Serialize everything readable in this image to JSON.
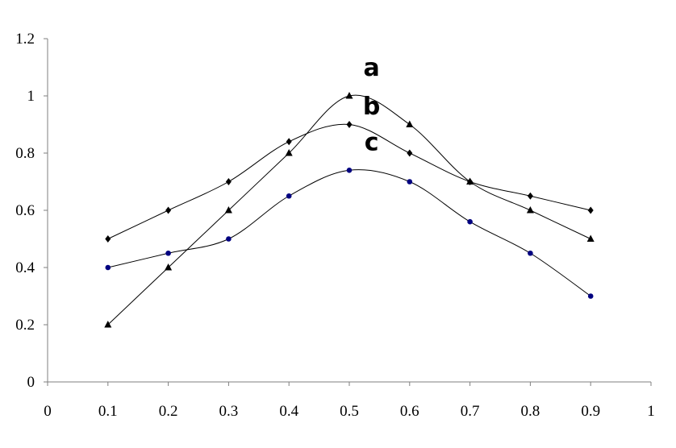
{
  "chart_data": {
    "type": "line",
    "title": "",
    "xlabel": "",
    "ylabel": "",
    "xlim": [
      0,
      1
    ],
    "ylim": [
      0,
      1.2
    ],
    "grid": false,
    "x_ticks": [
      "0",
      "0.1",
      "0.2",
      "0.3",
      "0.4",
      "0.5",
      "0.6",
      "0.7",
      "0.8",
      "0.9",
      "1"
    ],
    "y_ticks": [
      "0",
      "0.2",
      "0.4",
      "0.6",
      "0.8",
      "1",
      "1.2"
    ],
    "x": [
      0.1,
      0.2,
      0.3,
      0.4,
      0.5,
      0.6,
      0.7,
      0.8,
      0.9
    ],
    "series": [
      {
        "label": "a",
        "marker": "triangle",
        "color": "#000000",
        "values": [
          0.2,
          0.4,
          0.6,
          0.8,
          1.0,
          0.9,
          0.7,
          0.6,
          0.5
        ]
      },
      {
        "label": "b",
        "marker": "diamond",
        "color": "#000000",
        "values": [
          0.5,
          0.6,
          0.7,
          0.84,
          0.9,
          0.8,
          0.7,
          0.65,
          0.6
        ]
      },
      {
        "label": "c",
        "marker": "circle",
        "color": "#000080",
        "values": [
          0.4,
          0.45,
          0.5,
          0.65,
          0.74,
          0.7,
          0.56,
          0.45,
          0.3
        ]
      }
    ],
    "annotations": [
      {
        "text": "a",
        "x": 0.537,
        "y": 1.07
      },
      {
        "text": "b",
        "x": 0.537,
        "y": 0.935
      },
      {
        "text": "c",
        "x": 0.537,
        "y": 0.81
      }
    ]
  }
}
